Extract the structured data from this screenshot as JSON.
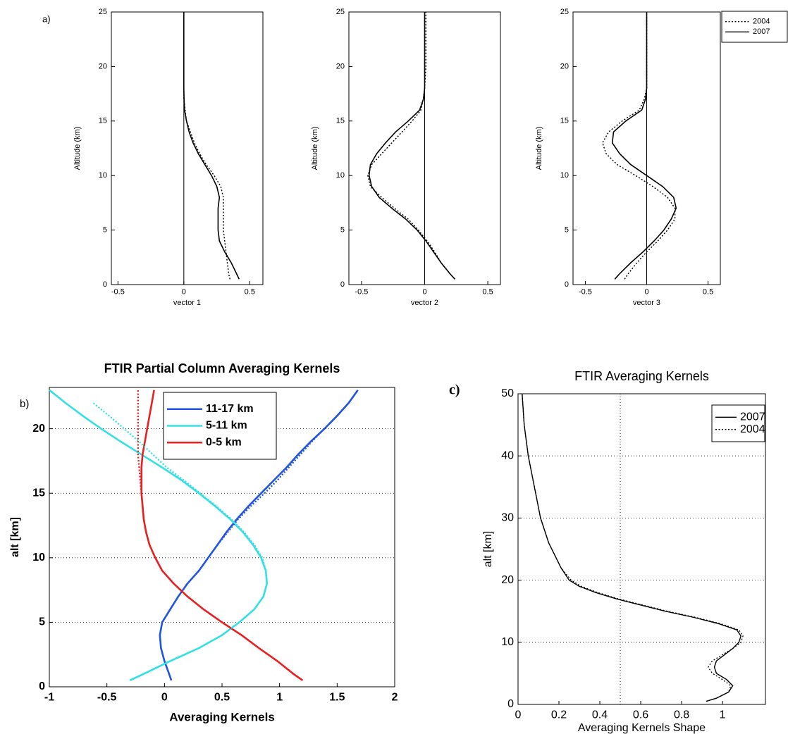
{
  "chart_data": [
    {
      "type": "line",
      "panel_label": "a)",
      "xlabel": "vector 1",
      "ylabel": "Altitude (km)",
      "xlim": [
        -0.55,
        0.6
      ],
      "xticks": [
        -0.5,
        0,
        0.5
      ],
      "ylim": [
        0,
        25
      ],
      "yticks": [
        0,
        5,
        10,
        15,
        20,
        25
      ],
      "reference_line_x": 0,
      "y": [
        0.5,
        1,
        2,
        3,
        4,
        5,
        6,
        7,
        8,
        9,
        10,
        11,
        12,
        13,
        14,
        15,
        16,
        17,
        18,
        20,
        22,
        25
      ],
      "series": [
        {
          "color": "#000000",
          "line_style": "dotted",
          "values": [
            0.35,
            0.34,
            0.33,
            0.32,
            0.31,
            0.3,
            0.3,
            0.3,
            0.3,
            0.28,
            0.23,
            0.17,
            0.12,
            0.08,
            0.05,
            0.02,
            0.01,
            0,
            0,
            0,
            0,
            0
          ]
        },
        {
          "color": "#000000",
          "line_style": "solid",
          "values": [
            0.42,
            0.4,
            0.36,
            0.31,
            0.27,
            0.26,
            0.26,
            0.26,
            0.27,
            0.25,
            0.21,
            0.16,
            0.11,
            0.07,
            0.04,
            0.02,
            0.005,
            0.002,
            0,
            0,
            0,
            0
          ]
        }
      ]
    },
    {
      "type": "line",
      "xlabel": "vector 2",
      "ylabel": "Altitude (km)",
      "xlim": [
        -0.6,
        0.6
      ],
      "xticks": [
        -0.5,
        0,
        0.5
      ],
      "ylim": [
        0,
        25
      ],
      "yticks": [
        0,
        5,
        10,
        15,
        20,
        25
      ],
      "reference_line_x": 0,
      "y": [
        0.5,
        1,
        2,
        3,
        4,
        5,
        6,
        7,
        8,
        9,
        10,
        11,
        12,
        13,
        14,
        15,
        16,
        17,
        18,
        20,
        22,
        25
      ],
      "series": [
        {
          "color": "#000000",
          "line_style": "dotted",
          "values": [
            0.24,
            0.2,
            0.13,
            0.08,
            0.02,
            -0.05,
            -0.13,
            -0.24,
            -0.34,
            -0.43,
            -0.45,
            -0.42,
            -0.34,
            -0.26,
            -0.18,
            -0.1,
            -0.03,
            -0.01,
            0,
            0.01,
            0.01,
            0.01
          ]
        },
        {
          "color": "#000000",
          "line_style": "solid",
          "values": [
            0.24,
            0.2,
            0.13,
            0.07,
            0.01,
            -0.06,
            -0.15,
            -0.26,
            -0.36,
            -0.42,
            -0.44,
            -0.43,
            -0.38,
            -0.31,
            -0.23,
            -0.13,
            -0.04,
            -0.01,
            0,
            0,
            0,
            0
          ]
        }
      ]
    },
    {
      "type": "line",
      "xlabel": "vector 3",
      "ylabel": "Altitude (km)",
      "xlim": [
        -0.6,
        0.6
      ],
      "xticks": [
        -0.5,
        0,
        0.5
      ],
      "ylim": [
        0,
        25
      ],
      "yticks": [
        0,
        5,
        10,
        15,
        20,
        25
      ],
      "reference_line_x": 0,
      "y": [
        0.5,
        1,
        2,
        3,
        4,
        5,
        6,
        7,
        8,
        9,
        10,
        11,
        12,
        13,
        14,
        15,
        16,
        17,
        18,
        20,
        22,
        25
      ],
      "series": [
        {
          "name": "2004",
          "color": "#000000",
          "line_style": "dotted",
          "values": [
            -0.18,
            -0.15,
            -0.08,
            0.0,
            0.09,
            0.17,
            0.23,
            0.23,
            0.17,
            0.05,
            -0.09,
            -0.24,
            -0.33,
            -0.36,
            -0.31,
            -0.2,
            -0.06,
            -0.02,
            0,
            0,
            0,
            0
          ]
        },
        {
          "name": "2007",
          "color": "#000000",
          "line_style": "solid",
          "values": [
            -0.26,
            -0.22,
            -0.13,
            -0.03,
            0.06,
            0.14,
            0.2,
            0.24,
            0.22,
            0.13,
            0.0,
            -0.13,
            -0.22,
            -0.28,
            -0.27,
            -0.17,
            -0.04,
            -0.01,
            0,
            0,
            0,
            0
          ]
        }
      ]
    },
    {
      "type": "line",
      "panel_label": "b)",
      "title": "FTIR Partial Column Averaging Kernels",
      "xlabel": "Averaging Kernels",
      "ylabel": "alt [km]",
      "xlim": [
        -1,
        2
      ],
      "xticks": [
        -1,
        -0.5,
        0,
        0.5,
        1,
        1.5,
        2
      ],
      "ylim": [
        0,
        23.2
      ],
      "yticks": [
        0,
        5,
        10,
        15,
        20
      ],
      "grid": "y",
      "y": [
        0.5,
        1,
        2,
        3,
        4,
        5,
        6,
        7,
        8,
        9,
        10,
        11,
        12,
        13,
        14,
        15,
        16,
        17,
        18,
        19,
        20,
        21,
        22,
        23
      ],
      "series": [
        {
          "name": "11-17 km",
          "color": "#2255e0",
          "line_style": "solid",
          "values": [
            0.06,
            0.04,
            0.0,
            -0.03,
            -0.04,
            -0.02,
            0.05,
            0.12,
            0.2,
            0.3,
            0.38,
            0.46,
            0.54,
            0.63,
            0.73,
            0.84,
            0.95,
            1.06,
            1.16,
            1.27,
            1.39,
            1.5,
            1.6,
            1.68
          ]
        },
        {
          "name": "5-11 km",
          "color": "#33e0e6",
          "line_style": "solid",
          "values": [
            -0.3,
            -0.18,
            0.05,
            0.3,
            0.5,
            0.65,
            0.78,
            0.86,
            0.89,
            0.88,
            0.84,
            0.77,
            0.68,
            0.57,
            0.44,
            0.3,
            0.15,
            -0.02,
            -0.2,
            -0.38,
            -0.55,
            -0.71,
            -0.86,
            -1.0
          ]
        },
        {
          "name": "0-5 km",
          "color": "#e82020",
          "line_style": "solid",
          "values": [
            1.2,
            1.12,
            0.98,
            0.82,
            0.67,
            0.5,
            0.34,
            0.2,
            0.08,
            -0.02,
            -0.08,
            -0.13,
            -0.16,
            -0.18,
            -0.19,
            -0.2,
            -0.2,
            -0.2,
            -0.19,
            -0.17,
            -0.15,
            -0.13,
            -0.11,
            -0.09
          ]
        },
        {
          "color": "#2255e0",
          "line_style": "dotted",
          "values": [
            0.06,
            0.04,
            0.0,
            -0.03,
            -0.04,
            -0.02,
            0.05,
            0.12,
            0.2,
            0.3,
            0.38,
            0.46,
            0.55,
            0.64,
            0.75,
            0.87,
            0.98,
            1.08,
            1.18,
            1.28,
            1.39,
            1.5,
            1.6,
            1.68
          ]
        },
        {
          "color": "#33e0e6",
          "line_style": "dotted",
          "values": [
            -0.3,
            -0.18,
            0.05,
            0.3,
            0.5,
            0.65,
            0.78,
            0.86,
            0.89,
            0.88,
            0.85,
            0.78,
            0.69,
            0.58,
            0.45,
            0.31,
            0.17,
            0.02,
            -0.1,
            -0.22,
            -0.35,
            -0.48,
            -0.62,
            null
          ]
        },
        {
          "color": "#e82020",
          "line_style": "dotted",
          "values": [
            1.2,
            1.12,
            0.98,
            0.82,
            0.67,
            0.5,
            0.34,
            0.2,
            0.08,
            -0.02,
            -0.08,
            -0.13,
            -0.16,
            -0.18,
            -0.19,
            -0.2,
            -0.21,
            -0.22,
            -0.23,
            -0.23,
            -0.23,
            -0.23,
            -0.23,
            -0.23
          ]
        }
      ]
    },
    {
      "type": "line",
      "panel_label": "c)",
      "title": "FTIR Averaging Kernels",
      "xlabel": "Averaging Kernels Shape",
      "ylabel": "alt [km]",
      "xlim": [
        0,
        1.21
      ],
      "xticks": [
        0,
        0.2,
        0.4,
        0.6,
        0.8,
        1
      ],
      "ylim": [
        0,
        50
      ],
      "yticks": [
        0,
        10,
        20,
        30,
        40,
        50
      ],
      "grid": "y",
      "xgrid": [
        0.5
      ],
      "y": [
        0.5,
        1,
        2,
        3,
        4,
        5,
        6,
        7,
        8,
        9,
        10,
        11,
        12,
        13,
        14,
        15,
        16,
        17,
        18,
        19,
        20,
        22,
        24,
        26,
        28,
        30,
        35,
        40,
        45,
        50
      ],
      "series": [
        {
          "name": "2007",
          "color": "#000000",
          "line_style": "solid",
          "values": [
            0.92,
            0.97,
            1.03,
            1.05,
            1.02,
            0.97,
            0.96,
            0.97,
            1.01,
            1.05,
            1.08,
            1.09,
            1.07,
            0.98,
            0.86,
            0.72,
            0.6,
            0.48,
            0.38,
            0.3,
            0.25,
            0.21,
            0.18,
            0.15,
            0.13,
            0.11,
            0.08,
            0.05,
            0.03,
            0.02
          ]
        },
        {
          "name": "2004",
          "color": "#000000",
          "line_style": "dotted",
          "values": [
            0.92,
            0.97,
            1.03,
            1.04,
            1.0,
            0.95,
            0.93,
            0.95,
            1.0,
            1.05,
            1.09,
            1.1,
            1.08,
            0.99,
            0.87,
            0.73,
            0.61,
            0.49,
            0.39,
            0.31,
            0.26,
            0.21,
            0.18,
            0.15,
            0.13,
            0.11,
            0.08,
            0.05,
            0.03,
            0.02
          ]
        }
      ]
    }
  ]
}
